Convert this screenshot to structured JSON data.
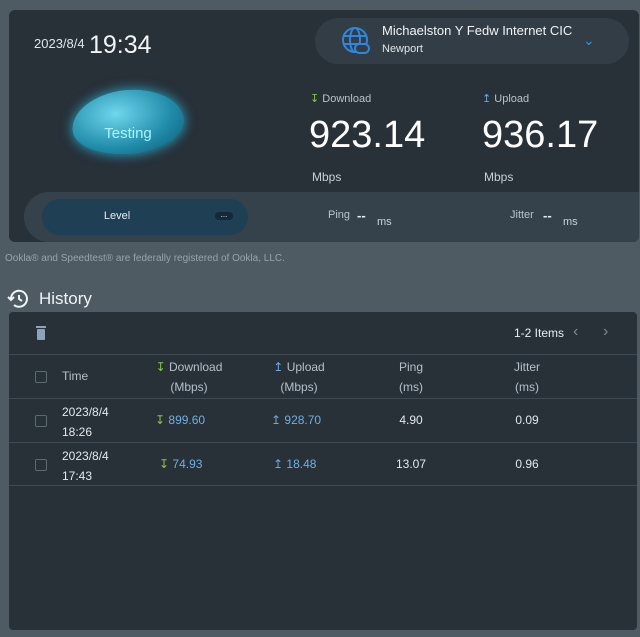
{
  "header": {
    "date": "2023/8/4",
    "time": "19:34"
  },
  "server": {
    "name": "Michaelston Y Fedw Internet CIC",
    "city": "Newport",
    "icon": "globe-link-icon"
  },
  "status": "Testing",
  "download": {
    "label": "Download",
    "value": "923.14",
    "unit": "Mbps"
  },
  "upload": {
    "label": "Upload",
    "value": "936.17",
    "unit": "Mbps"
  },
  "level": {
    "label": "Level",
    "value": "..."
  },
  "ping": {
    "label": "Ping",
    "value": "--",
    "unit": "ms"
  },
  "jitter": {
    "label": "Jitter",
    "value": "--",
    "unit": "ms"
  },
  "legal": "Ookla® and Speedtest® are federally registered of Ookla, LLC.",
  "history": {
    "title": "History",
    "items": "1-2 Items",
    "columns": {
      "time": "Time",
      "download": "Download",
      "download_unit": "(Mbps)",
      "upload": "Upload",
      "upload_unit": "(Mbps)",
      "ping": "Ping",
      "ping_unit": "(ms)",
      "jitter": "Jitter",
      "jitter_unit": "(ms)"
    },
    "rows": [
      {
        "date": "2023/8/4",
        "time": "18:26",
        "download": "899.60",
        "upload": "928.70",
        "ping": "4.90",
        "jitter": "0.09"
      },
      {
        "date": "2023/8/4",
        "time": "17:43",
        "download": "74.93",
        "upload": "18.48",
        "ping": "13.07",
        "jitter": "0.96"
      }
    ]
  },
  "colors": {
    "accent": "#3a8de0",
    "download": "#8bc34a",
    "value": "#6fb0e4"
  }
}
